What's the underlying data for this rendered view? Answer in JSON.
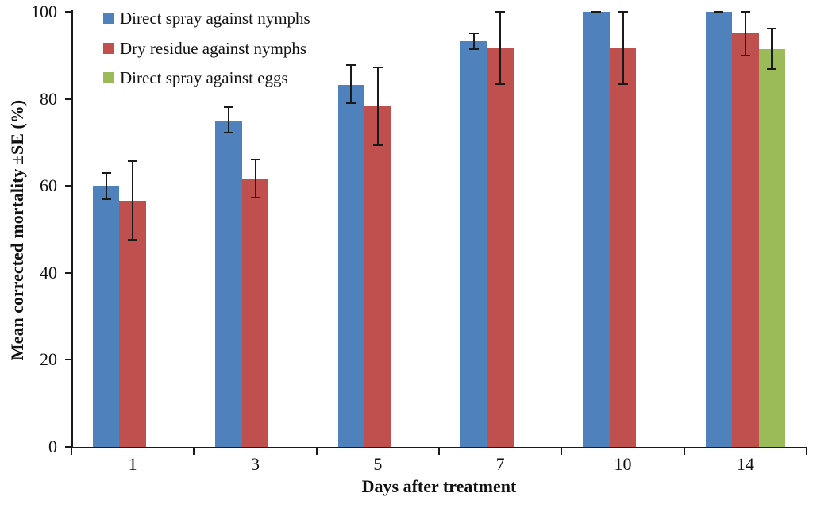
{
  "chart_data": {
    "type": "bar",
    "title": "",
    "xlabel": "Days after treatment",
    "ylabel": "Mean corrected mortality ±SE (%)",
    "ylim": [
      0,
      100
    ],
    "yticks": [
      0,
      20,
      40,
      60,
      80,
      100
    ],
    "categories": [
      "1",
      "3",
      "5",
      "7",
      "10",
      "14"
    ],
    "grid": false,
    "legend_position": "top-left-inside",
    "error_bar_color": "#1a1a1a",
    "background_color": "#ffffff",
    "series": [
      {
        "name": "Direct spray against nymphs",
        "color": "#4F81BD",
        "values": [
          60,
          75,
          83.3,
          93.3,
          100,
          100
        ],
        "err_up": [
          3,
          3.1,
          4.4,
          1.8,
          0,
          0
        ],
        "err_down": [
          3,
          2.7,
          4.3,
          1.8,
          0,
          0
        ]
      },
      {
        "name": "Dry residue against nymphs",
        "color": "#C0504D",
        "values": [
          56.5,
          61.7,
          78.3,
          91.7,
          91.7,
          95
        ],
        "err_up": [
          9.2,
          4.4,
          9.0,
          8.3,
          8.3,
          5
        ],
        "err_down": [
          8.9,
          4.4,
          8.9,
          8.3,
          8.3,
          5
        ]
      },
      {
        "name": "Direct spray against eggs",
        "color": "#9BBB59",
        "values": [
          null,
          null,
          null,
          null,
          null,
          91.5
        ],
        "err_up": [
          null,
          null,
          null,
          null,
          null,
          4.6
        ],
        "err_down": [
          null,
          null,
          null,
          null,
          null,
          4.6
        ]
      }
    ]
  }
}
